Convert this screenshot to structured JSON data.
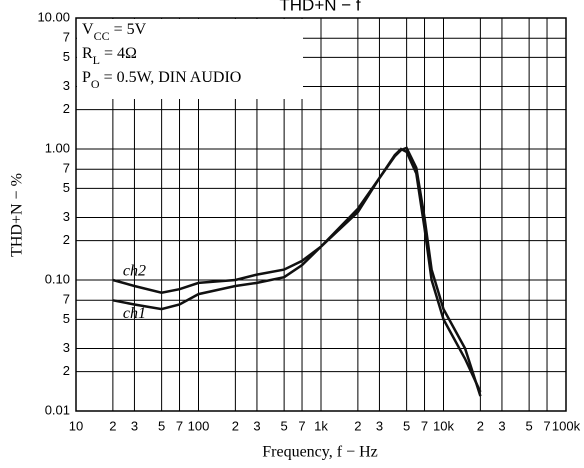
{
  "chart_data": {
    "type": "line",
    "title": "THD+N − f",
    "xlabel": "Frequency, f − Hz",
    "ylabel": "THD+N − %",
    "xscale": "log",
    "yscale": "log",
    "grid": true,
    "xlim": [
      10,
      100000
    ],
    "ylim": [
      0.01,
      10
    ],
    "xticks": [
      10,
      {
        "value": 20,
        "label": "2"
      },
      {
        "value": 30,
        "label": "3"
      },
      {
        "value": 50,
        "label": "5"
      },
      {
        "value": 70,
        "label": "7"
      },
      100,
      {
        "value": 200,
        "label": "2"
      },
      {
        "value": 300,
        "label": "3"
      },
      {
        "value": 500,
        "label": "5"
      },
      {
        "value": 700,
        "label": "7"
      },
      {
        "value": 1000,
        "label": "1k"
      },
      {
        "value": 2000,
        "label": "2"
      },
      {
        "value": 3000,
        "label": "3"
      },
      {
        "value": 5000,
        "label": "5"
      },
      {
        "value": 7000,
        "label": "7"
      },
      {
        "value": 10000,
        "label": "10k"
      },
      {
        "value": 20000,
        "label": "2"
      },
      {
        "value": 30000,
        "label": "3"
      },
      {
        "value": 50000,
        "label": "5"
      },
      {
        "value": 70000,
        "label": "7"
      },
      {
        "value": 100000,
        "label": "100k"
      }
    ],
    "yticks": [
      0.01,
      {
        "value": 0.02,
        "label": "2"
      },
      {
        "value": 0.03,
        "label": "3"
      },
      {
        "value": 0.05,
        "label": "5"
      },
      {
        "value": 0.07,
        "label": "7"
      },
      {
        "value": 0.1,
        "label": "0.10"
      },
      {
        "value": 0.2,
        "label": "2"
      },
      {
        "value": 0.3,
        "label": "3"
      },
      {
        "value": 0.5,
        "label": "5"
      },
      {
        "value": 0.7,
        "label": "7"
      },
      {
        "value": 1,
        "label": "1.00"
      },
      {
        "value": 2,
        "label": "2"
      },
      {
        "value": 3,
        "label": "3"
      },
      {
        "value": 5,
        "label": "5"
      },
      {
        "value": 7,
        "label": "7"
      },
      {
        "value": 10,
        "label": "10.00"
      }
    ],
    "annotations": [
      [
        "V",
        "CC",
        " = 5V"
      ],
      [
        "R",
        "L",
        " = 4Ω"
      ],
      [
        "P",
        "O",
        " = 0.5W, DIN AUDIO"
      ]
    ],
    "x": [
      20,
      30,
      50,
      70,
      100,
      200,
      300,
      500,
      700,
      1000,
      2000,
      3000,
      4000,
      4500,
      5000,
      6000,
      7000,
      8000,
      10000,
      15000,
      20000
    ],
    "series": [
      {
        "name": "ch2",
        "color": "#111111",
        "values": [
          0.1,
          0.09,
          0.08,
          0.085,
          0.095,
          0.1,
          0.11,
          0.12,
          0.14,
          0.18,
          0.35,
          0.6,
          0.9,
          1.0,
          0.95,
          0.65,
          0.25,
          0.1,
          0.05,
          0.025,
          0.014
        ]
      },
      {
        "name": "ch1",
        "color": "#111111",
        "values": [
          0.07,
          0.065,
          0.06,
          0.065,
          0.078,
          0.09,
          0.095,
          0.105,
          0.13,
          0.18,
          0.33,
          0.6,
          0.88,
          0.98,
          1.02,
          0.72,
          0.3,
          0.12,
          0.06,
          0.03,
          0.013
        ]
      }
    ]
  }
}
